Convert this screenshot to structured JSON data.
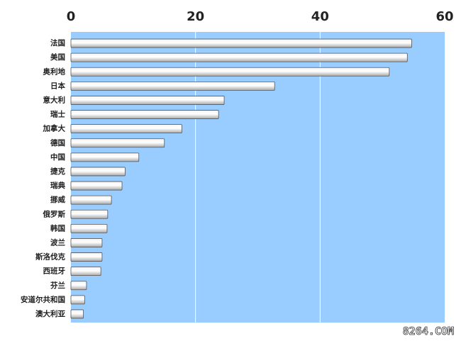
{
  "chart_data": {
    "type": "barh",
    "categories": [
      "法国",
      "美国",
      "奥利地",
      "日本",
      "意大利",
      "瑞士",
      "加拿大",
      "德国",
      "中国",
      "捷克",
      "瑞典",
      "挪威",
      "俄罗斯",
      "韩国",
      "波兰",
      "斯洛伐克",
      "西班牙",
      "芬兰",
      "安道尔共和国",
      "澳大利亚"
    ],
    "values": [
      54.7,
      54.0,
      51.1,
      32.7,
      24.6,
      23.7,
      17.8,
      15.0,
      10.9,
      8.7,
      8.2,
      6.5,
      5.9,
      5.8,
      5.0,
      5.0,
      4.8,
      2.5,
      2.2,
      2.0
    ],
    "color": "#a8a8a8",
    "xlim": [
      0,
      60
    ],
    "xticks": [
      0,
      20,
      40,
      60
    ],
    "grid": true,
    "annotation": "8264.COM"
  }
}
